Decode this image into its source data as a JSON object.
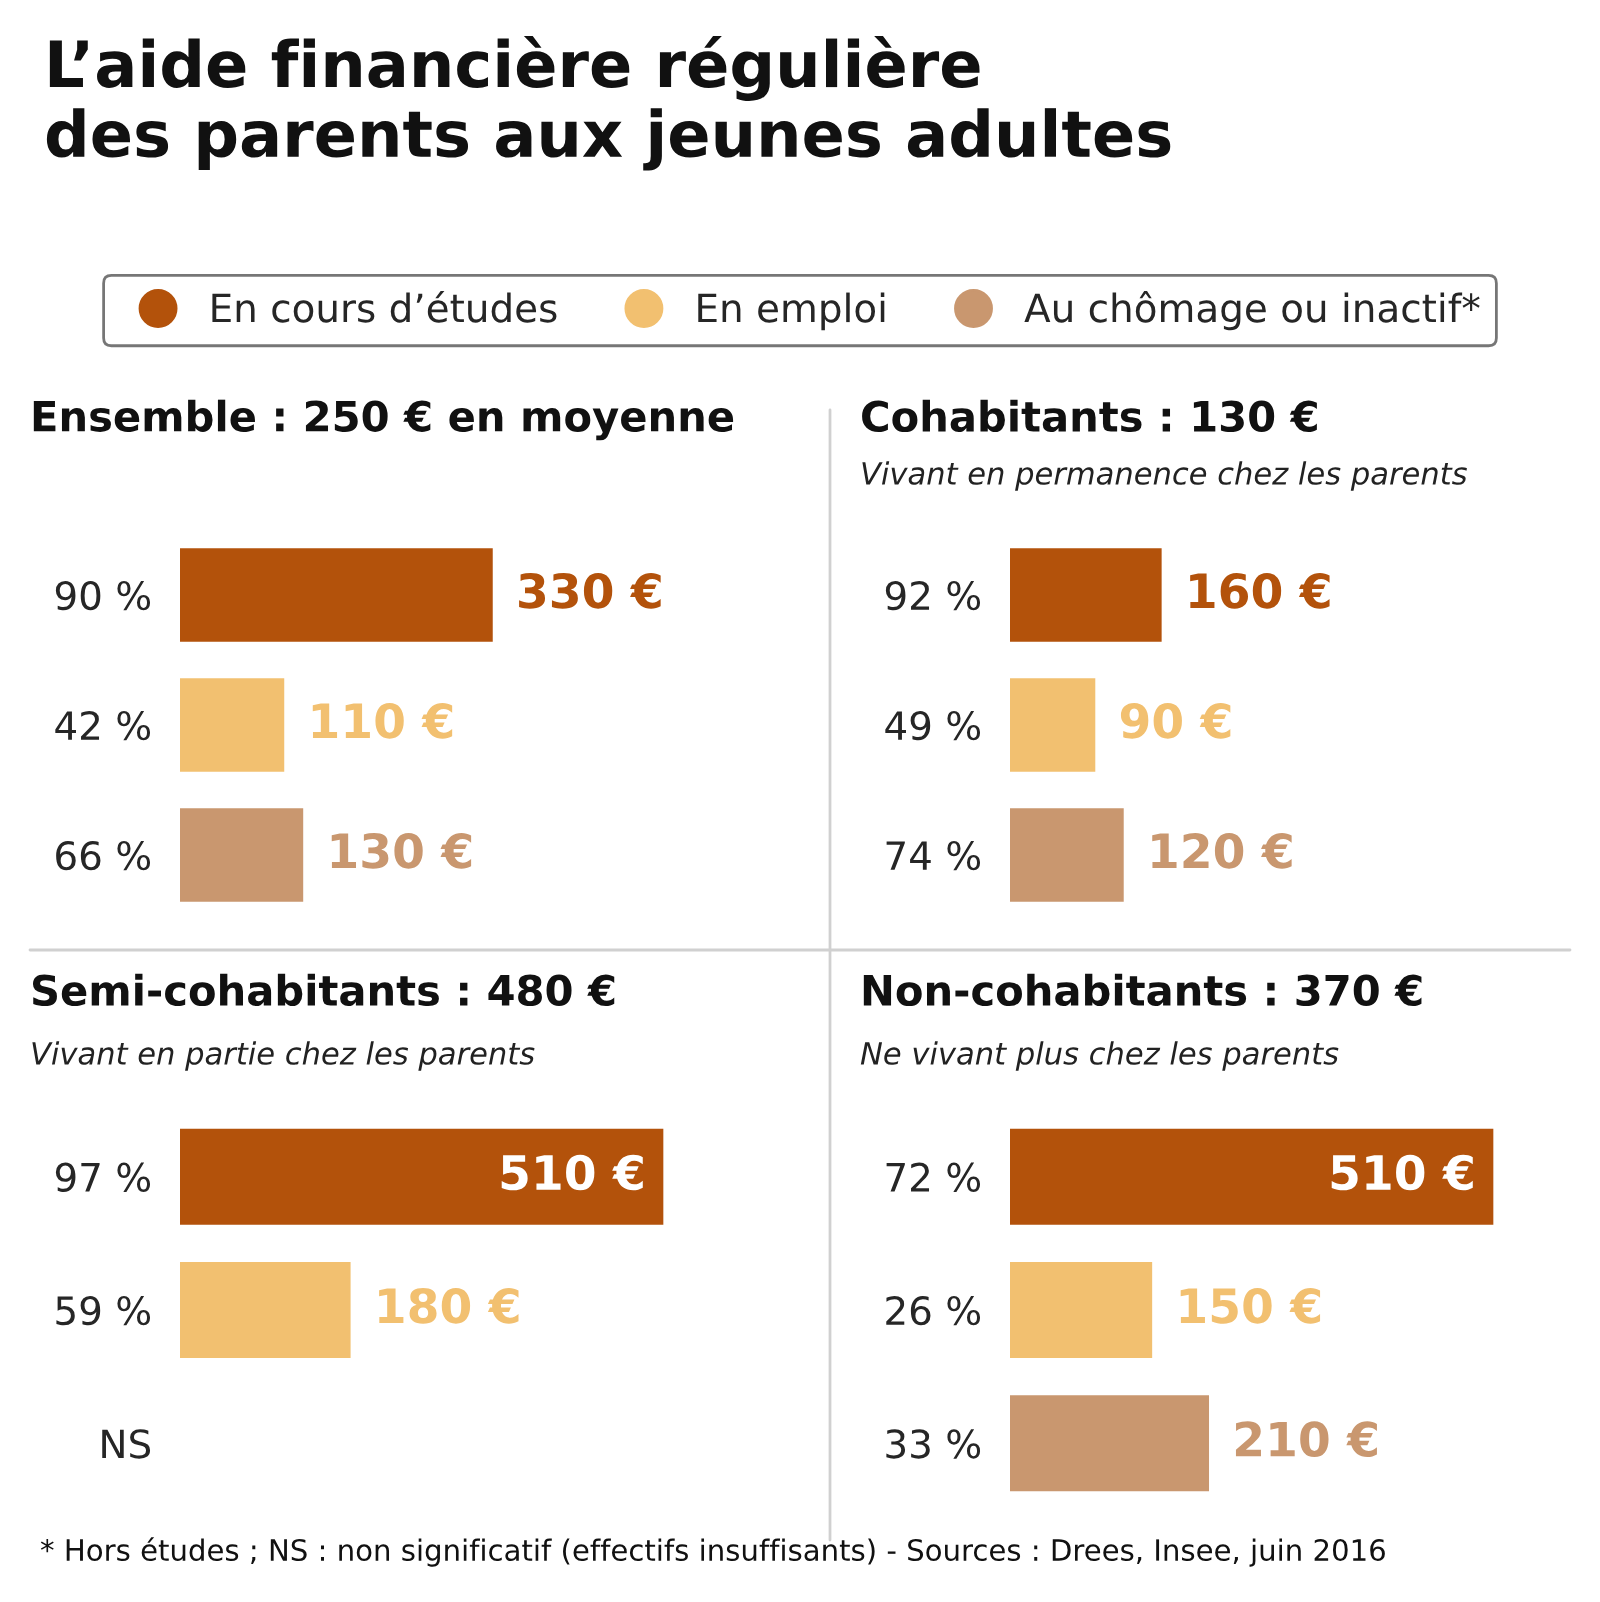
{
  "chart_data": [
    {
      "type": "bar",
      "orientation": "horizontal",
      "legend": "top",
      "title": "Ensemble : 250 € en moyenne",
      "annotations": [
        "L’aide financière régulière\ndes parents aux jeunes adultes",
        "* Hors études ; NS : non significatif (effectifs insuffisants) - Sources : Drees, Insee, juin 2016"
      ],
      "categories": [
        "90 %",
        "42 %",
        "66 %"
      ],
      "series": [
        {
          "name": "En cours d’études",
          "color": "#b3520b",
          "values": [
            330,
            null,
            null
          ],
          "value_labels": [
            "330 €",
            null,
            null
          ]
        },
        {
          "name": "En emploi",
          "color": "#f2c070",
          "values": [
            null,
            110,
            null
          ],
          "value_labels": [
            null,
            "110 €",
            null
          ]
        },
        {
          "name": "Au chômage ou inactif*",
          "color": "#c9976f",
          "values": [
            null,
            null,
            130
          ],
          "value_labels": [
            null,
            null,
            "130 €"
          ]
        }
      ]
    },
    {
      "type": "bar",
      "orientation": "horizontal",
      "title": "Cohabitants : 130 €",
      "subtitle": "Vivant en permanence chez les parents",
      "categories": [
        "92 %",
        "49 %",
        "74 %"
      ],
      "series": [
        {
          "color": "#b3520b",
          "values": [
            160,
            null,
            null
          ],
          "value_labels": [
            "160 €",
            null,
            null
          ]
        },
        {
          "color": "#f2c070",
          "values": [
            null,
            90,
            null
          ],
          "value_labels": [
            null,
            "90 €",
            null
          ]
        },
        {
          "color": "#c9976f",
          "values": [
            null,
            null,
            120
          ],
          "value_labels": [
            null,
            null,
            "120 €"
          ]
        }
      ]
    },
    {
      "type": "bar",
      "orientation": "horizontal",
      "title": "Semi-cohabitants : 480 €",
      "subtitle": "Vivant en partie chez les parents",
      "categories": [
        "97 %",
        "59 %",
        "NS"
      ],
      "series": [
        {
          "color": "#b3520b",
          "values": [
            510,
            null,
            null
          ],
          "value_labels": [
            "510 €",
            null,
            null
          ]
        },
        {
          "color": "#f2c070",
          "values": [
            null,
            180,
            null
          ],
          "value_labels": [
            null,
            "180 €",
            null
          ]
        },
        {
          "color": "#c9976f",
          "values": [
            null,
            null,
            null
          ],
          "value_labels": [
            null,
            null,
            null
          ]
        }
      ]
    },
    {
      "type": "bar",
      "orientation": "horizontal",
      "title": "Non-cohabitants : 370 €",
      "subtitle": "Ne vivant plus chez les parents",
      "categories": [
        "72 %",
        "26 %",
        "33 %"
      ],
      "series": [
        {
          "color": "#b3520b",
          "values": [
            510,
            null,
            null
          ],
          "value_labels": [
            "510 €",
            null,
            null
          ]
        },
        {
          "color": "#f2c070",
          "values": [
            null,
            150,
            null
          ],
          "value_labels": [
            null,
            "150 €",
            null
          ]
        },
        {
          "color": "#c9976f",
          "values": [
            null,
            null,
            210
          ],
          "value_labels": [
            null,
            null,
            "210 €"
          ]
        }
      ]
    }
  ]
}
